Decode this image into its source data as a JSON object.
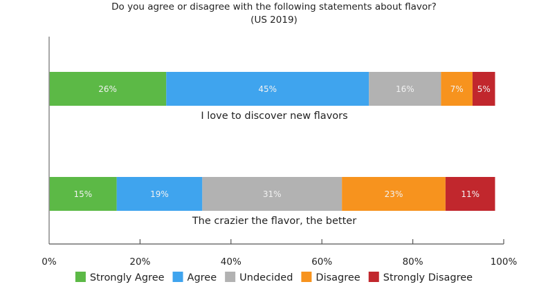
{
  "chart_data": {
    "type": "bar",
    "orientation": "horizontal",
    "stacked": true,
    "title": "Do you agree or disagree with the following statements about flavor?",
    "subtitle": "(US 2019)",
    "xlabel": "",
    "ylabel": "",
    "xlim": [
      0,
      100
    ],
    "x_ticks": [
      0,
      20,
      40,
      60,
      80,
      100
    ],
    "x_tick_labels": [
      "0%",
      "20%",
      "40%",
      "60%",
      "80%",
      "100%"
    ],
    "grid": false,
    "legend_position": "bottom",
    "categories": [
      "I love to discover new flavors",
      "The crazier the flavor, the better"
    ],
    "series": [
      {
        "name": "Strongly Agree",
        "color": "#5cb946",
        "values": [
          26,
          15
        ],
        "labels": [
          "26%",
          "15%"
        ]
      },
      {
        "name": "Agree",
        "color": "#3fa4ee",
        "values": [
          45,
          19
        ],
        "labels": [
          "45%",
          "19%"
        ]
      },
      {
        "name": "Undecided",
        "color": "#b2b2b2",
        "values": [
          16,
          31
        ],
        "labels": [
          "16%",
          "31%"
        ]
      },
      {
        "name": "Disagree",
        "color": "#f7931e",
        "values": [
          7,
          23
        ],
        "labels": [
          "7%",
          "23%"
        ]
      },
      {
        "name": "Strongly Disagree",
        "color": "#c1272d",
        "values": [
          5,
          11
        ],
        "labels": [
          "5%",
          "11%"
        ]
      }
    ]
  }
}
